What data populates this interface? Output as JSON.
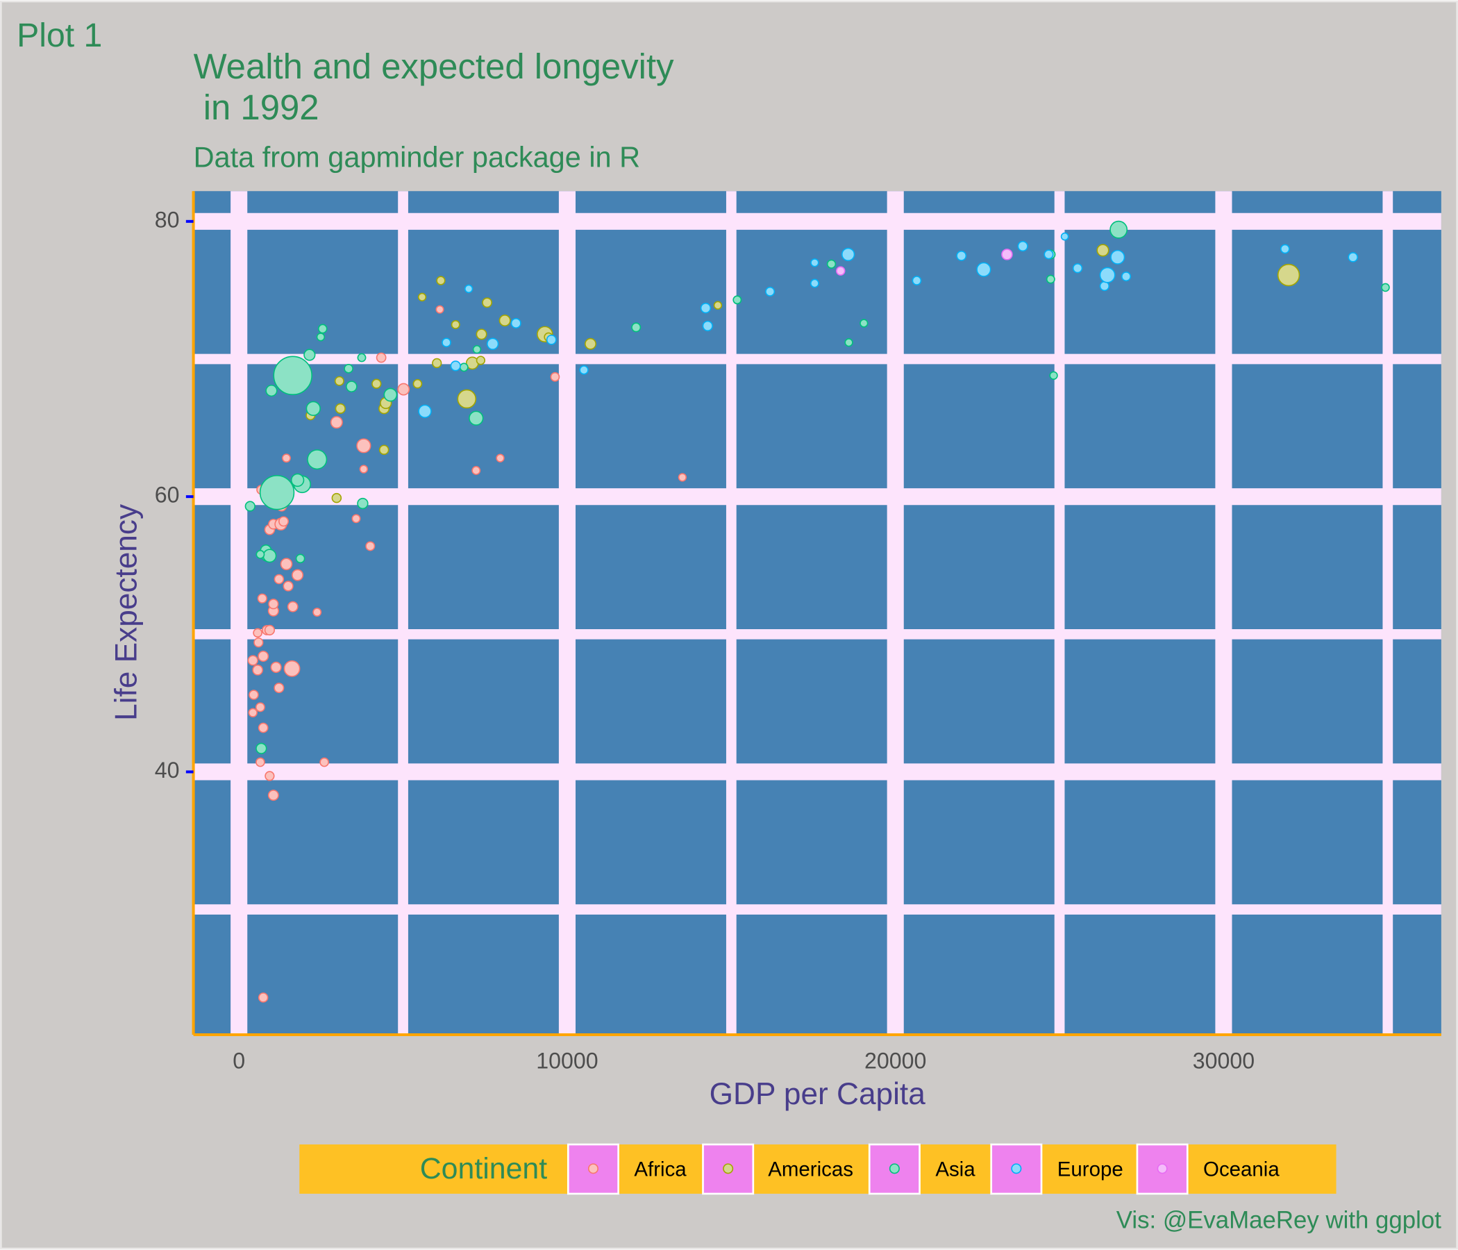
{
  "chart_data": {
    "type": "scatter",
    "tag": "Plot 1",
    "title": [
      "Wealth and expected longevity",
      " in 1992"
    ],
    "subtitle": "Data from gapminder package in R",
    "caption": "Vis: @EvaMaeRey with ggplot",
    "x_label": "GDP per Capita",
    "y_label": "Life Expectency",
    "legend_title": "Continent",
    "xlim": [
      -1388,
      36630
    ],
    "ylim": [
      20.9,
      82.2
    ],
    "xticks": [
      0,
      10000,
      20000,
      30000
    ],
    "yticks": [
      40,
      60,
      80
    ],
    "xminorticks": [
      5000,
      15000,
      25000,
      35000
    ],
    "yminorticks": [
      30,
      50,
      70
    ],
    "grid": true,
    "series": [
      {
        "name": "Africa",
        "color": "#F8766D",
        "x": [
          740,
          1050,
          935,
          650,
          2600,
          740,
          425,
          450,
          1220,
          650,
          1615,
          1130,
          570,
          425,
          740,
          595,
          850,
          570,
          935,
          1050,
          1050,
          1640,
          2380,
          710,
          1220,
          1500,
          1785,
          1445,
          4000,
          935,
          1050,
          1275,
          1360,
          3570,
          965,
          1300,
          680,
          3800,
          7225,
          7960,
          13510,
          1445,
          3800,
          2975,
          5015,
          9630,
          4335,
          6120
        ],
        "values": [
          23.6,
          38.3,
          39.7,
          40.7,
          40.7,
          43.2,
          44.3,
          45.6,
          46.1,
          44.7,
          47.5,
          47.6,
          47.4,
          48.1,
          48.4,
          49.4,
          50.3,
          50.1,
          50.3,
          51.7,
          52.2,
          52.0,
          51.6,
          52.6,
          54.0,
          53.5,
          54.3,
          55.1,
          56.4,
          57.6,
          58.0,
          58.0,
          58.2,
          58.4,
          59.7,
          59.3,
          60.5,
          62.0,
          61.9,
          62.8,
          61.4,
          62.8,
          63.7,
          65.4,
          67.8,
          68.7,
          70.1,
          73.6
        ],
        "sizes": [
          7,
          14,
          6,
          4,
          4,
          8,
          3,
          7,
          9,
          5,
          93,
          15,
          12,
          10,
          14,
          6,
          8,
          4,
          10,
          15,
          10,
          13,
          2,
          6,
          7,
          10,
          20,
          25,
          5,
          12,
          11,
          30,
          9,
          2,
          4,
          10,
          6,
          1,
          2,
          1,
          1,
          2,
          59,
          28,
          26,
          4,
          8,
          0.6
        ]
      },
      {
        "name": "Americas",
        "color": "#A3A500",
        "x": [
          2975,
          2180,
          3090,
          4420,
          4475,
          4420,
          3060,
          4190,
          5440,
          6030,
          6940,
          7110,
          7365,
          6600,
          7390,
          8100,
          7560,
          6150,
          5580,
          9320,
          9430,
          10710,
          14590,
          26320,
          31980
        ],
        "values": [
          59.9,
          65.9,
          66.4,
          66.4,
          66.8,
          63.4,
          68.4,
          68.2,
          68.2,
          69.7,
          67.1,
          69.7,
          69.9,
          72.5,
          71.8,
          72.8,
          74.1,
          75.7,
          74.5,
          71.8,
          71.6,
          71.1,
          73.9,
          77.9,
          76.1
        ],
        "sizes": [
          7,
          5,
          10,
          15,
          22,
          7,
          5,
          6,
          4,
          6,
          155,
          34,
          3,
          2,
          14,
          20,
          8,
          3,
          1,
          88,
          3,
          20,
          1,
          29,
          257
        ]
      },
      {
        "name": "Asia",
        "color": "#00BF7D",
        "x": [
          340,
          850,
          820,
          935,
          680,
          1870,
          650,
          1160,
          1925,
          1785,
          2380,
          1640,
          990,
          2265,
          2150,
          3340,
          3430,
          3740,
          3770,
          4615,
          6855,
          7225,
          7250,
          2490,
          2550,
          12100,
          15180,
          18580,
          19040,
          18050,
          24820,
          24730,
          24730,
          26800,
          34930
        ],
        "values": [
          59.3,
          55.7,
          56.1,
          55.7,
          41.7,
          55.5,
          55.8,
          60.3,
          60.9,
          61.2,
          62.7,
          68.8,
          67.7,
          66.4,
          70.3,
          69.3,
          68.0,
          70.1,
          59.5,
          67.4,
          69.4,
          65.7,
          70.7,
          71.6,
          72.2,
          72.3,
          74.3,
          71.2,
          72.6,
          76.9,
          68.8,
          75.8,
          77.6,
          79.4,
          75.2
        ],
        "sizes": [
          10,
          20,
          19,
          45,
          16,
          4,
          2,
          872,
          120,
          40,
          185,
          1165,
          22,
          60,
          22,
          4,
          18,
          2,
          16,
          43,
          2,
          60,
          1,
          1,
          4,
          5,
          2,
          1,
          1,
          3,
          1,
          2,
          6,
          124,
          1.4
        ]
      },
      {
        "name": "Europe",
        "color": "#00B0F6",
        "x": [
          5665,
          6320,
          6600,
          7000,
          7730,
          8440,
          9520,
          10510,
          14220,
          14280,
          16180,
          17540,
          17540,
          18560,
          20650,
          22010,
          22690,
          23880,
          24670,
          25160,
          25550,
          26370,
          26460,
          26770,
          27030,
          31870,
          33940
        ],
        "values": [
          66.2,
          71.2,
          69.5,
          75.1,
          71.1,
          72.6,
          71.4,
          69.2,
          73.7,
          72.4,
          74.9,
          75.5,
          77.0,
          77.6,
          75.7,
          77.5,
          76.5,
          78.2,
          77.6,
          78.9,
          76.6,
          75.3,
          76.1,
          77.4,
          76.0,
          78.0,
          77.4
        ],
        "sizes": [
          40,
          4,
          10,
          1,
          23,
          9,
          8,
          3,
          10,
          10,
          5,
          2,
          1,
          39,
          4,
          8,
          58,
          10,
          5,
          0.3,
          6,
          6,
          80,
          57,
          5,
          4,
          7
        ]
      },
      {
        "name": "Oceania",
        "color": "#E76BF3",
        "x": [
          18330,
          23400
        ],
        "values": [
          76.4,
          77.6
        ],
        "sizes": [
          3.4,
          17.5
        ]
      }
    ]
  }
}
